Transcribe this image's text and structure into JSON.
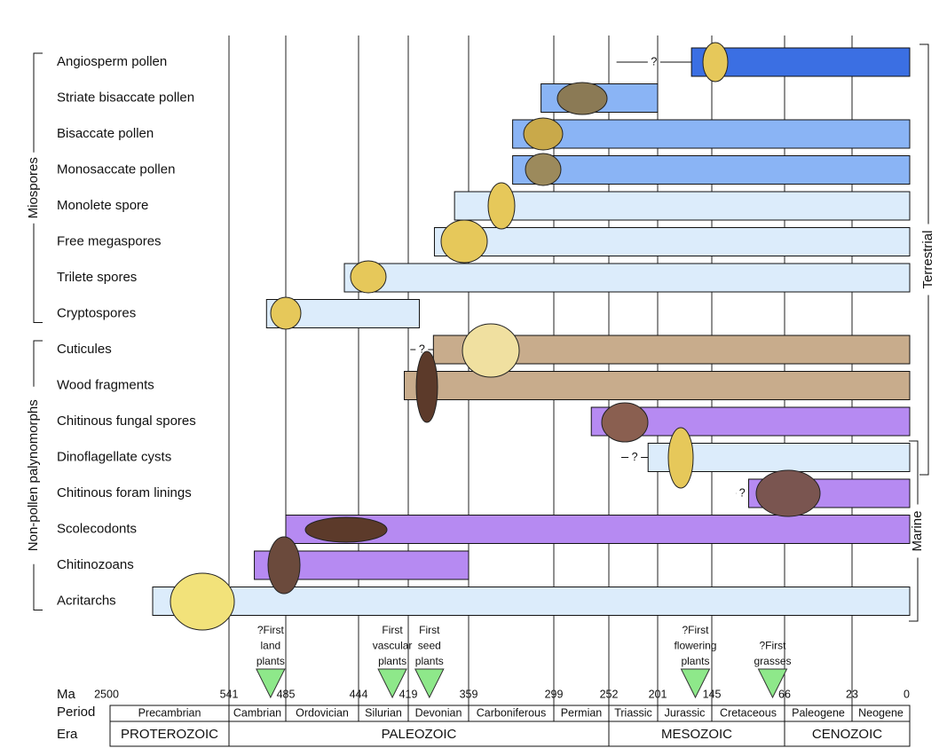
{
  "chart_data": {
    "type": "range",
    "x_label": "Ma",
    "xlim": [
      2500,
      0
    ],
    "xticks": [
      2500,
      541,
      485,
      444,
      419,
      359,
      299,
      252,
      201,
      145,
      66,
      23,
      0
    ],
    "period_label": "Period",
    "era_label": "Era",
    "periods": [
      {
        "name": "Precambrian",
        "from": 2500,
        "to": 541
      },
      {
        "name": "Cambrian",
        "from": 541,
        "to": 485
      },
      {
        "name": "Ordovician",
        "from": 485,
        "to": 444
      },
      {
        "name": "Silurian",
        "from": 444,
        "to": 419
      },
      {
        "name": "Devonian",
        "from": 419,
        "to": 359
      },
      {
        "name": "Carboniferous",
        "from": 359,
        "to": 299
      },
      {
        "name": "Permian",
        "from": 299,
        "to": 252
      },
      {
        "name": "Triassic",
        "from": 252,
        "to": 201
      },
      {
        "name": "Jurassic",
        "from": 201,
        "to": 145
      },
      {
        "name": "Cretaceous",
        "from": 145,
        "to": 66
      },
      {
        "name": "Paleogene",
        "from": 66,
        "to": 23
      },
      {
        "name": "Neogene",
        "from": 23,
        "to": 0
      }
    ],
    "eras": [
      {
        "name": "PROTEROZOIC",
        "from": 2500,
        "to": 541
      },
      {
        "name": "PALEOZOIC",
        "from": 541,
        "to": 252
      },
      {
        "name": "MESOZOIC",
        "from": 252,
        "to": 66
      },
      {
        "name": "CENOZOIC",
        "from": 66,
        "to": 0
      }
    ],
    "rows": [
      {
        "name": "Angiosperm pollen",
        "start": 166,
        "end": 0,
        "color": "#3b6fe3",
        "uncertain_from": 244,
        "uncertain_label": "?"
      },
      {
        "name": "Striate bisaccate pollen",
        "start": 308,
        "end": 201,
        "color": "#8ab4f5"
      },
      {
        "name": "Bisaccate pollen",
        "start": 328,
        "end": 0,
        "color": "#8ab4f5"
      },
      {
        "name": "Monosaccate pollen",
        "start": 328,
        "end": 0,
        "color": "#8ab4f5"
      },
      {
        "name": "Monolete spore",
        "start": 373,
        "end": 0,
        "color": "#dcecfb"
      },
      {
        "name": "Free megaspores",
        "start": 393,
        "end": 0,
        "color": "#dcecfb"
      },
      {
        "name": "Trilete spores",
        "start": 452,
        "end": 0,
        "color": "#dcecfb"
      },
      {
        "name": "Cryptospores",
        "start": 504,
        "end": 408,
        "color": "#dcecfb"
      },
      {
        "name": "Cuticules",
        "start": 394,
        "end": 0,
        "color": "#c8ac8c",
        "uncertain_from": 417,
        "uncertain_label": "?"
      },
      {
        "name": "Wood fragments",
        "start": 421,
        "end": 0,
        "color": "#c8ac8c"
      },
      {
        "name": "Chitinous fungal spores",
        "start": 267,
        "end": 0,
        "color": "#b68af2"
      },
      {
        "name": "Dinoflagellate cysts",
        "start": 211,
        "end": 0,
        "color": "#dcecfb",
        "uncertain_from": 239,
        "uncertain_label": "?"
      },
      {
        "name": "Chitinous foram linings",
        "start": 105,
        "end": 0,
        "color": "#b68af2",
        "uncertain_from": 119,
        "uncertain_label": "?"
      },
      {
        "name": "Scolecodonts",
        "start": 485,
        "end": 0,
        "color": "#b68af2"
      },
      {
        "name": "Chitinozoans",
        "start": 516,
        "end": 359,
        "color": "#b68af2"
      },
      {
        "name": "Acritarchs",
        "start": 1798,
        "end": 0,
        "color": "#dcecfb"
      }
    ],
    "left_groups": [
      "Miospores",
      "Non-pollen palynomorphs"
    ],
    "right_groups": [
      "Terrestrial",
      "Marine"
    ],
    "events": [
      {
        "lines": [
          "?First",
          "land",
          "plants"
        ],
        "ma": 500
      },
      {
        "lines": [
          "First",
          "vascular",
          "plants"
        ],
        "ma": 427
      },
      {
        "lines": [
          "First",
          "seed",
          "plants"
        ],
        "ma": 398
      },
      {
        "lines": [
          "?First",
          "flowering",
          "plants"
        ],
        "ma": 162
      },
      {
        "lines": [
          "?First",
          "grasses"
        ],
        "ma": 79
      }
    ],
    "event_color": "#8ee88a"
  }
}
